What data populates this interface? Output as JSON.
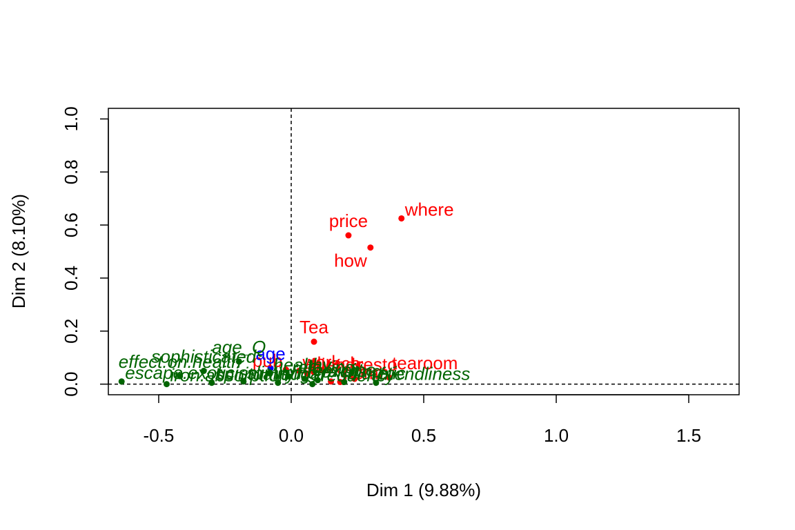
{
  "chart_data": {
    "type": "scatter",
    "xlabel": "Dim 1 (9.88%)",
    "ylabel": "Dim 2 (8.10%)",
    "xlim": [
      -0.69,
      1.69
    ],
    "ylim": [
      -0.04,
      1.04
    ],
    "x_ticks": [
      {
        "value": -0.5,
        "label": "-0.5"
      },
      {
        "value": 0.0,
        "label": "0.0"
      },
      {
        "value": 0.5,
        "label": "0.5"
      },
      {
        "value": 1.0,
        "label": "1.0"
      },
      {
        "value": 1.5,
        "label": "1.5"
      }
    ],
    "y_ticks": [
      {
        "value": 0.0,
        "label": "0.0"
      },
      {
        "value": 0.2,
        "label": "0.2"
      },
      {
        "value": 0.4,
        "label": "0.4"
      },
      {
        "value": 0.6,
        "label": "0.6"
      },
      {
        "value": 0.8,
        "label": "0.8"
      },
      {
        "value": 1.0,
        "label": "1.0"
      }
    ],
    "reference_lines": {
      "x": 0,
      "y": 0,
      "style": "dashed"
    },
    "grid": false,
    "legend": "none",
    "colors": {
      "active": "#ff0000",
      "supplementary_quali": "#006400",
      "supplementary_quanti": "#0000ff"
    },
    "series": [
      {
        "color": "#ff0000",
        "italic": false,
        "points": [
          {
            "x": 0.416,
            "y": 0.625,
            "label": "where",
            "anchor": "right"
          },
          {
            "x": 0.216,
            "y": 0.561,
            "label": "price",
            "anchor": "top"
          },
          {
            "x": 0.299,
            "y": 0.515,
            "label": "how",
            "anchor": "bottomleft"
          },
          {
            "x": 0.086,
            "y": 0.16,
            "label": "Tea",
            "anchor": "top"
          },
          {
            "x": 0.239,
            "y": 0.02,
            "label": "resto",
            "anchor": "topright"
          },
          {
            "x": 0.37,
            "y": 0.025,
            "label": "tearoom",
            "anchor": "topright"
          },
          {
            "x": 0.15,
            "y": 0.01,
            "label": "always",
            "anchor": "top"
          },
          {
            "x": 0.085,
            "y": 0.045,
            "label": "lunch",
            "anchor": "right"
          },
          {
            "x": 0.06,
            "y": 0.04,
            "label": "friends",
            "anchor": "right"
          },
          {
            "x": 0.185,
            "y": 0.008,
            "label": "home",
            "anchor": "right"
          },
          {
            "x": 0.03,
            "y": 0.05,
            "label": "work",
            "anchor": "right"
          },
          {
            "x": -0.02,
            "y": 0.055,
            "label": "pub",
            "anchor": "left"
          }
        ]
      },
      {
        "color": "#0000ff",
        "italic": false,
        "points": [
          {
            "x": -0.078,
            "y": 0.06,
            "label": "age",
            "anchor": "top"
          }
        ]
      },
      {
        "color": "#006400",
        "italic": true,
        "points": [
          {
            "x": -0.197,
            "y": 0.085,
            "label": "age_Q",
            "anchor": "top"
          },
          {
            "x": -0.33,
            "y": 0.05,
            "label": "sophisticated",
            "anchor": "top"
          },
          {
            "x": -0.42,
            "y": 0.03,
            "label": "effect.on.health",
            "anchor": "top"
          },
          {
            "x": -0.64,
            "y": 0.01,
            "label": "escape.exoticism",
            "anchor": "right"
          },
          {
            "x": -0.47,
            "y": 0.0,
            "label": "iron.absorption",
            "anchor": "right"
          },
          {
            "x": -0.3,
            "y": 0.005,
            "label": "spirituality",
            "anchor": "right"
          },
          {
            "x": -0.18,
            "y": 0.01,
            "label": "slimming",
            "anchor": "right"
          },
          {
            "x": -0.05,
            "y": 0.005,
            "label": "sugar",
            "anchor": "right"
          },
          {
            "x": 0.08,
            "y": 0.0,
            "label": "frequency",
            "anchor": "right"
          },
          {
            "x": 0.32,
            "y": 0.005,
            "label": "friendliness",
            "anchor": "right"
          },
          {
            "x": 0.2,
            "y": 0.008,
            "label": "diuretic",
            "anchor": "right"
          },
          {
            "x": -0.08,
            "y": 0.04,
            "label": "healthy",
            "anchor": "right"
          },
          {
            "x": -0.01,
            "y": 0.03,
            "label": "relaxing",
            "anchor": "right"
          },
          {
            "x": 0.1,
            "y": 0.015,
            "label": "exciting",
            "anchor": "right"
          },
          {
            "x": 0.05,
            "y": 0.02,
            "label": "feminine",
            "anchor": "right"
          }
        ]
      }
    ]
  }
}
